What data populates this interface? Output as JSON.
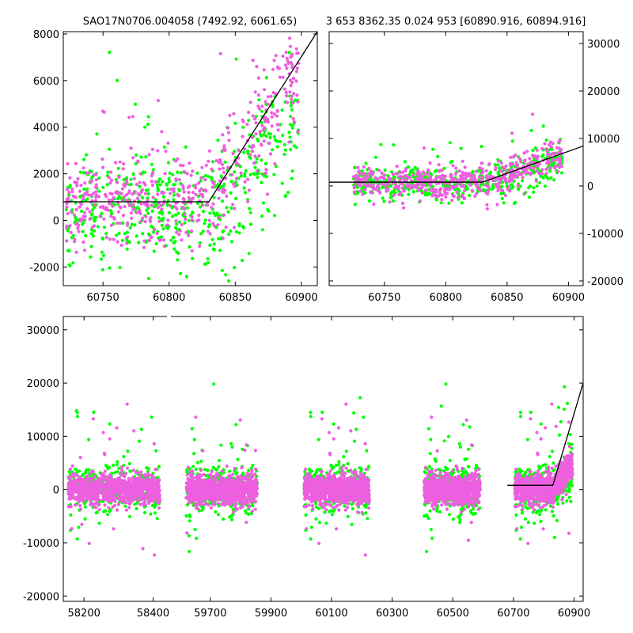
{
  "chart_data": [
    {
      "type": "scatter",
      "title": "SAO17N0706.004058 (7492.92, 6061.65)",
      "xlim": [
        60720,
        60912
      ],
      "ylim": [
        -2800,
        8100
      ],
      "x_ticks": [
        60750,
        60800,
        60850,
        60900
      ],
      "y_ticks": [
        -2000,
        0,
        2000,
        4000,
        6000,
        8000
      ],
      "y_tick_side": "left",
      "model_line": [
        [
          60720,
          800
        ],
        [
          60830,
          800
        ],
        [
          60912,
          8100
        ]
      ],
      "series": [
        {
          "color": "#ee5ee0",
          "x_range": [
            60722,
            60898
          ],
          "baseline": 800,
          "spread": 1000,
          "flare_start": 60832,
          "flare_end_level": 6600
        },
        {
          "color": "#00ff00",
          "x_range": [
            60722,
            60898
          ],
          "baseline": 400,
          "spread": 1100,
          "flare_start": 60832,
          "flare_end_level": 4200
        }
      ]
    },
    {
      "type": "scatter",
      "title": "3 653 8362.35 0.024 953 [60890.916, 60894.916]",
      "xlim": [
        60705,
        60912
      ],
      "ylim": [
        -21000,
        32500
      ],
      "x_ticks": [
        60750,
        60800,
        60850,
        60900
      ],
      "y_ticks": [
        -20000,
        -10000,
        0,
        10000,
        20000,
        30000
      ],
      "y_tick_side": "right",
      "model_line": [
        [
          60705,
          800
        ],
        [
          60830,
          800
        ],
        [
          60912,
          8400
        ]
      ],
      "series": [
        {
          "color": "#ee5ee0",
          "x_range": [
            60725,
            60895
          ],
          "baseline": 800,
          "spread": 1600,
          "flare_start": 60832,
          "flare_end_level": 6500
        },
        {
          "color": "#00ff00",
          "x_range": [
            60725,
            60895
          ],
          "baseline": 500,
          "spread": 1700,
          "flare_start": 60832,
          "flare_end_level": 5000
        }
      ]
    },
    {
      "type": "scatter",
      "title": "",
      "ylim": [
        -21000,
        32500
      ],
      "y_ticks": [
        -20000,
        -10000,
        0,
        10000,
        20000,
        30000
      ],
      "y_tick_side": "left",
      "segments": [
        {
          "xlim": [
            58140,
            58440
          ],
          "x_ticks": [
            58200,
            58400
          ],
          "data_range": [
            58155,
            58420
          ]
        },
        {
          "xlim": [
            59570,
            60930
          ],
          "x_ticks": [
            59700,
            59900,
            60100,
            60300,
            60500,
            60700,
            60900
          ],
          "data_ranges": [
            [
              59620,
              59855
            ],
            [
              60010,
              60225
            ],
            [
              60405,
              60590
            ],
            [
              60705,
              60895
            ]
          ]
        }
      ],
      "model_line": [
        [
          60680,
          800
        ],
        [
          60830,
          800
        ],
        [
          60930,
          20000
        ]
      ],
      "series": [
        {
          "color": "#ee5ee0",
          "baseline": 0,
          "spread": 1400
        },
        {
          "color": "#00ff00",
          "baseline": 0,
          "spread": 2200
        }
      ]
    }
  ]
}
